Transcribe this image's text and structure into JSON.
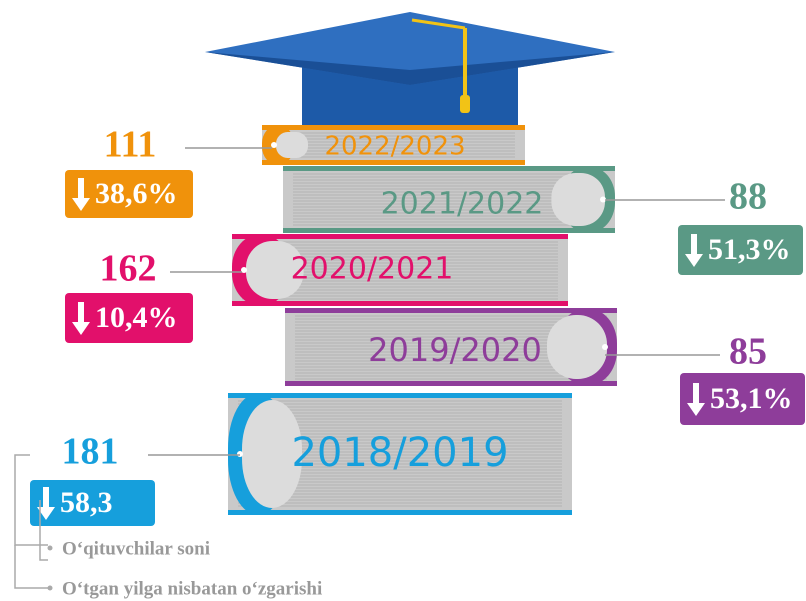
{
  "items": [
    {
      "year": "2022/2023",
      "count": "111",
      "change": "38,6%",
      "color": "#f0920b"
    },
    {
      "year": "2021/2022",
      "count": "88",
      "change": "51,3%",
      "color": "#5a9985"
    },
    {
      "year": "2020/2021",
      "count": "162",
      "change": "10,4%",
      "color": "#e2106b"
    },
    {
      "year": "2019/2020",
      "count": "85",
      "change": "53,1%",
      "color": "#8e3d9a"
    },
    {
      "year": "2018/2019",
      "count": "181",
      "change": "58,3",
      "color": "#169fdc"
    }
  ],
  "legend": [
    "O‘qituvchilar soni",
    "O‘tgan yilga nisbatan o‘zgarishi"
  ]
}
